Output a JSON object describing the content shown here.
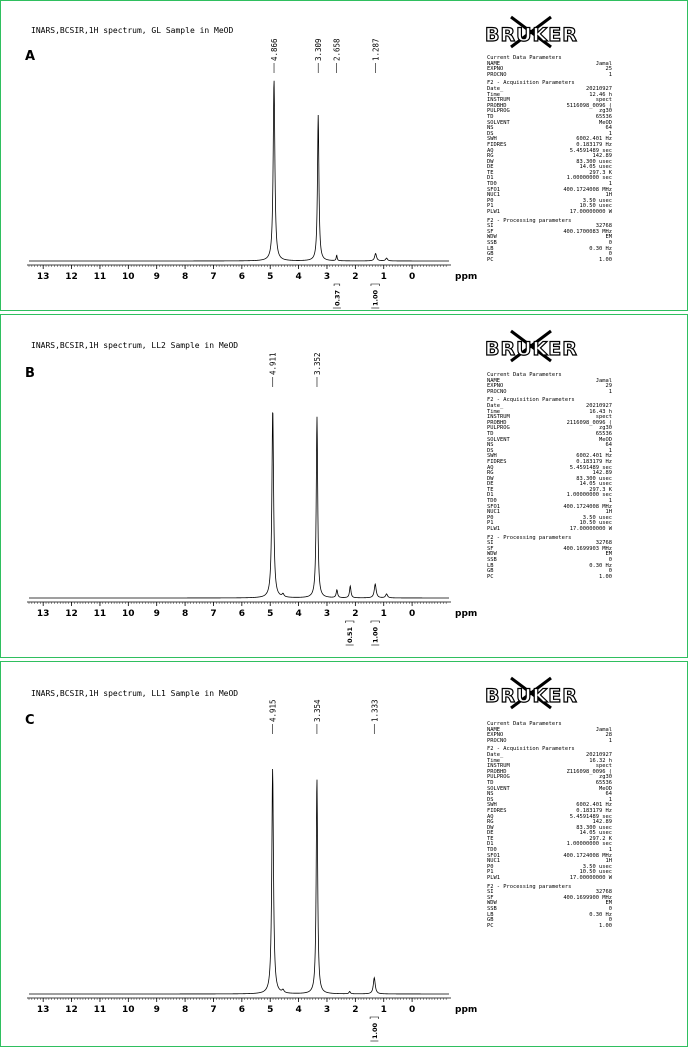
{
  "panels": [
    {
      "letter": "A",
      "header": "INARS,BCSIR,1H spectrum, GL Sample in MeOD",
      "logo_text": "BRUKER",
      "current": {
        "title": "Current Data Parameters",
        "rows": [
          [
            "NAME",
            "Jamal"
          ],
          [
            "EXPNO",
            "25"
          ],
          [
            "PROCNO",
            "1"
          ]
        ]
      },
      "acq": {
        "title": "F2 - Acquisition Parameters",
        "rows": [
          [
            "Date_",
            "20210927"
          ],
          [
            "Time",
            "12.46 h"
          ],
          [
            "INSTRUM",
            "spect"
          ],
          [
            "PROBHD",
            "5116098_0096 ("
          ],
          [
            "PULPROG",
            "zg30"
          ],
          [
            "TD",
            "65536"
          ],
          [
            "SOLVENT",
            "MeOD"
          ],
          [
            "NS",
            "64"
          ],
          [
            "DS",
            "1"
          ],
          [
            "SWH",
            "6002.401 Hz"
          ],
          [
            "FIDRES",
            "0.183179 Hz"
          ],
          [
            "AQ",
            "5.4591489 sec"
          ],
          [
            "RG",
            "142.89"
          ],
          [
            "DW",
            "83.300 usec"
          ],
          [
            "DE",
            "14.05 usec"
          ],
          [
            "TE",
            "297.3 K"
          ],
          [
            "D1",
            "1.00000000 sec"
          ],
          [
            "TD0",
            "1"
          ],
          [
            "SFO1",
            "400.1724008 MHz"
          ],
          [
            "NUC1",
            "1H"
          ],
          [
            "P0",
            "3.50 usec"
          ],
          [
            "P1",
            "10.50 usec"
          ],
          [
            "PLW1",
            "17.00000000 W"
          ]
        ]
      },
      "proc": {
        "title": "F2 - Processing parameters",
        "rows": [
          [
            "SI",
            "32768"
          ],
          [
            "SF",
            "400.1700083 MHz"
          ],
          [
            "WDW",
            "EM"
          ],
          [
            "SSB",
            "0"
          ],
          [
            "LB",
            "0.30 Hz"
          ],
          [
            "GB",
            "0"
          ],
          [
            "PC",
            "1.00"
          ]
        ]
      },
      "chart_data": {
        "type": "line",
        "xlabel": "ppm",
        "xlim": [
          13.5,
          -1.3
        ],
        "x_ticks": [
          13,
          12,
          11,
          10,
          9,
          8,
          7,
          6,
          5,
          4,
          3,
          2,
          1,
          0
        ],
        "peak_labels": [
          "4.866",
          "3.309",
          "2.658",
          "1.287"
        ],
        "peaks": [
          {
            "ppm": 4.866,
            "height": 0.97,
            "width": 0.035
          },
          {
            "ppm": 3.309,
            "height": 0.78,
            "width": 0.03
          },
          {
            "ppm": 2.658,
            "height": 0.03,
            "width": 0.02
          },
          {
            "ppm": 1.287,
            "height": 0.04,
            "width": 0.04
          },
          {
            "ppm": 0.9,
            "height": 0.015,
            "width": 0.04
          }
        ],
        "integrals": [
          {
            "label": "0.37",
            "from": 2.75,
            "to": 2.55
          },
          {
            "label": "1.00",
            "from": 1.45,
            "to": 1.15
          }
        ]
      }
    },
    {
      "letter": "B",
      "header": "INARS,BCSIR,1H spectrum, LL2 Sample in MeOD",
      "logo_text": "BRUKER",
      "current": {
        "title": "Current Data Parameters",
        "rows": [
          [
            "NAME",
            "Jamal"
          ],
          [
            "EXPNO",
            "29"
          ],
          [
            "PROCNO",
            "1"
          ]
        ]
      },
      "acq": {
        "title": "F2 - Acquisition Parameters",
        "rows": [
          [
            "Date_",
            "20210927"
          ],
          [
            "Time",
            "16.43 h"
          ],
          [
            "INSTRUM",
            "spect"
          ],
          [
            "PROBHD",
            "2116098_0096 ("
          ],
          [
            "PULPROG",
            "zg30"
          ],
          [
            "TD",
            "65536"
          ],
          [
            "SOLVENT",
            "MeOD"
          ],
          [
            "NS",
            "64"
          ],
          [
            "DS",
            "1"
          ],
          [
            "SWH",
            "6002.401 Hz"
          ],
          [
            "FIDRES",
            "0.183179 Hz"
          ],
          [
            "AQ",
            "5.4591489 sec"
          ],
          [
            "RG",
            "142.89"
          ],
          [
            "DW",
            "83.300 usec"
          ],
          [
            "DE",
            "14.05 usec"
          ],
          [
            "TE",
            "297.3 K"
          ],
          [
            "D1",
            "1.00000000 sec"
          ],
          [
            "TD0",
            "1"
          ],
          [
            "SFO1",
            "400.1724008 MHz"
          ],
          [
            "NUC1",
            "1H"
          ],
          [
            "P0",
            "3.50 usec"
          ],
          [
            "P1",
            "10.50 usec"
          ],
          [
            "PLW1",
            "17.00000000 W"
          ]
        ]
      },
      "proc": {
        "title": "F2 - Processing parameters",
        "rows": [
          [
            "SI",
            "32768"
          ],
          [
            "SF",
            "400.1699903 MHz"
          ],
          [
            "WDW",
            "EM"
          ],
          [
            "SSB",
            "0"
          ],
          [
            "LB",
            "0.30 Hz"
          ],
          [
            "GB",
            "0"
          ],
          [
            "PC",
            "1.00"
          ]
        ]
      },
      "chart_data": {
        "type": "line",
        "xlabel": "ppm",
        "xlim": [
          13.5,
          -1.3
        ],
        "x_ticks": [
          13,
          12,
          11,
          10,
          9,
          8,
          7,
          6,
          5,
          4,
          3,
          2,
          1,
          0
        ],
        "peak_labels": [
          "4.911",
          "3.352"
        ],
        "peaks": [
          {
            "ppm": 4.911,
            "height": 0.96,
            "width": 0.035
          },
          {
            "ppm": 3.352,
            "height": 0.92,
            "width": 0.03
          },
          {
            "ppm": 2.65,
            "height": 0.04,
            "width": 0.03
          },
          {
            "ppm": 2.18,
            "height": 0.06,
            "width": 0.03
          },
          {
            "ppm": 1.3,
            "height": 0.07,
            "width": 0.04
          },
          {
            "ppm": 0.9,
            "height": 0.02,
            "width": 0.04
          },
          {
            "ppm": 4.55,
            "height": 0.015,
            "width": 0.04
          }
        ],
        "integrals": [
          {
            "label": "0.51",
            "from": 2.35,
            "to": 2.05
          },
          {
            "label": "1.00",
            "from": 1.45,
            "to": 1.15
          }
        ]
      }
    },
    {
      "letter": "C",
      "header": "INARS,BCSIR,1H spectrum, LL1 Sample in MeOD",
      "logo_text": "BRUKER",
      "current": {
        "title": "Current Data Parameters",
        "rows": [
          [
            "NAME",
            "Jamal"
          ],
          [
            "EXPNO",
            "28"
          ],
          [
            "PROCNO",
            "1"
          ]
        ]
      },
      "acq": {
        "title": "F2 - Acquisition Parameters",
        "rows": [
          [
            "Date_",
            "20210927"
          ],
          [
            "Time",
            "16.32 h"
          ],
          [
            "INSTRUM",
            "spect"
          ],
          [
            "PROBHD",
            "Z116098_0096 ("
          ],
          [
            "PULPROG",
            "zg30"
          ],
          [
            "TD",
            "65536"
          ],
          [
            "SOLVENT",
            "MeOD"
          ],
          [
            "NS",
            "64"
          ],
          [
            "DS",
            "1"
          ],
          [
            "SWH",
            "6002.401 Hz"
          ],
          [
            "FIDRES",
            "0.183179 Hz"
          ],
          [
            "AQ",
            "5.4591489 sec"
          ],
          [
            "RG",
            "142.89"
          ],
          [
            "DW",
            "83.300 usec"
          ],
          [
            "DE",
            "14.05 usec"
          ],
          [
            "TE",
            "297.2 K"
          ],
          [
            "D1",
            "1.00000000 sec"
          ],
          [
            "TD0",
            "1"
          ],
          [
            "SFO1",
            "400.1724008 MHz"
          ],
          [
            "NUC1",
            "1H"
          ],
          [
            "P0",
            "3.50 usec"
          ],
          [
            "P1",
            "10.50 usec"
          ],
          [
            "PLW1",
            "17.00000000 W"
          ]
        ]
      },
      "proc": {
        "title": "F2 - Processing parameters",
        "rows": [
          [
            "SI",
            "32768"
          ],
          [
            "SF",
            "400.1699900 MHz"
          ],
          [
            "WDW",
            "EM"
          ],
          [
            "SSB",
            "0"
          ],
          [
            "LB",
            "0.30 Hz"
          ],
          [
            "GB",
            "0"
          ],
          [
            "PC",
            "1.00"
          ]
        ]
      },
      "chart_data": {
        "type": "line",
        "xlabel": "ppm",
        "xlim": [
          13.5,
          -1.3
        ],
        "x_ticks": [
          13,
          12,
          11,
          10,
          9,
          8,
          7,
          6,
          5,
          4,
          3,
          2,
          1,
          0
        ],
        "peak_labels": [
          "4.915",
          "3.354",
          "1.333"
        ],
        "peaks": [
          {
            "ppm": 4.915,
            "height": 0.97,
            "width": 0.035
          },
          {
            "ppm": 3.354,
            "height": 0.93,
            "width": 0.03
          },
          {
            "ppm": 1.333,
            "height": 0.07,
            "width": 0.04
          },
          {
            "ppm": 4.55,
            "height": 0.012,
            "width": 0.04
          },
          {
            "ppm": 2.2,
            "height": 0.01,
            "width": 0.03
          }
        ],
        "integrals": [
          {
            "label": "1.00",
            "from": 1.48,
            "to": 1.18
          }
        ]
      }
    }
  ]
}
